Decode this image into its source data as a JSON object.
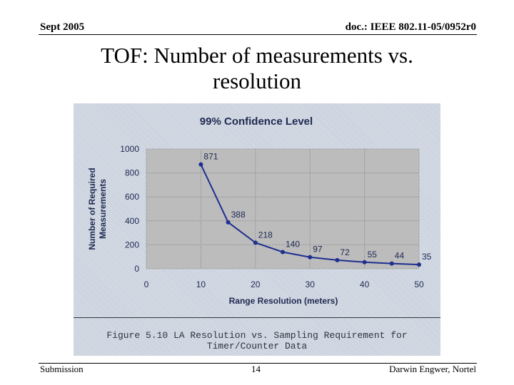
{
  "header": {
    "date": "Sept 2005",
    "doc": "doc.: IEEE 802.11-05/0952r0"
  },
  "slide_title": "TOF: Number of measurements vs. resolution",
  "figure_caption": "Figure 5.10  LA Resolution vs. Sampling Requirement for\nTimer/Counter Data",
  "footer": {
    "left": "Submission",
    "page": "14",
    "author": "Darwin Engwer, Nortel"
  },
  "colors": {
    "line": "#1f2f8f",
    "plot_bg": "#bcbcbc",
    "figure_bg": "#c9d1dd",
    "title_text": "#202a52"
  },
  "chart_data": {
    "type": "line",
    "title": "99% Confidence Level",
    "xlabel": "Range Resolution (meters)",
    "ylabel_lines": [
      "Number of Required",
      "Measurements"
    ],
    "xlim": [
      0,
      50
    ],
    "ylim": [
      0,
      1000
    ],
    "xticks": [
      0,
      10,
      20,
      30,
      40,
      50
    ],
    "yticks": [
      0,
      200,
      400,
      600,
      800,
      1000
    ],
    "grid": true,
    "x": [
      10,
      15,
      20,
      25,
      30,
      35,
      40,
      45,
      50
    ],
    "y": [
      871,
      388,
      218,
      140,
      97,
      72,
      55,
      44,
      35
    ],
    "labels": [
      "871",
      "388",
      "218",
      "140",
      "97",
      "72",
      "55",
      "44",
      "35"
    ]
  }
}
